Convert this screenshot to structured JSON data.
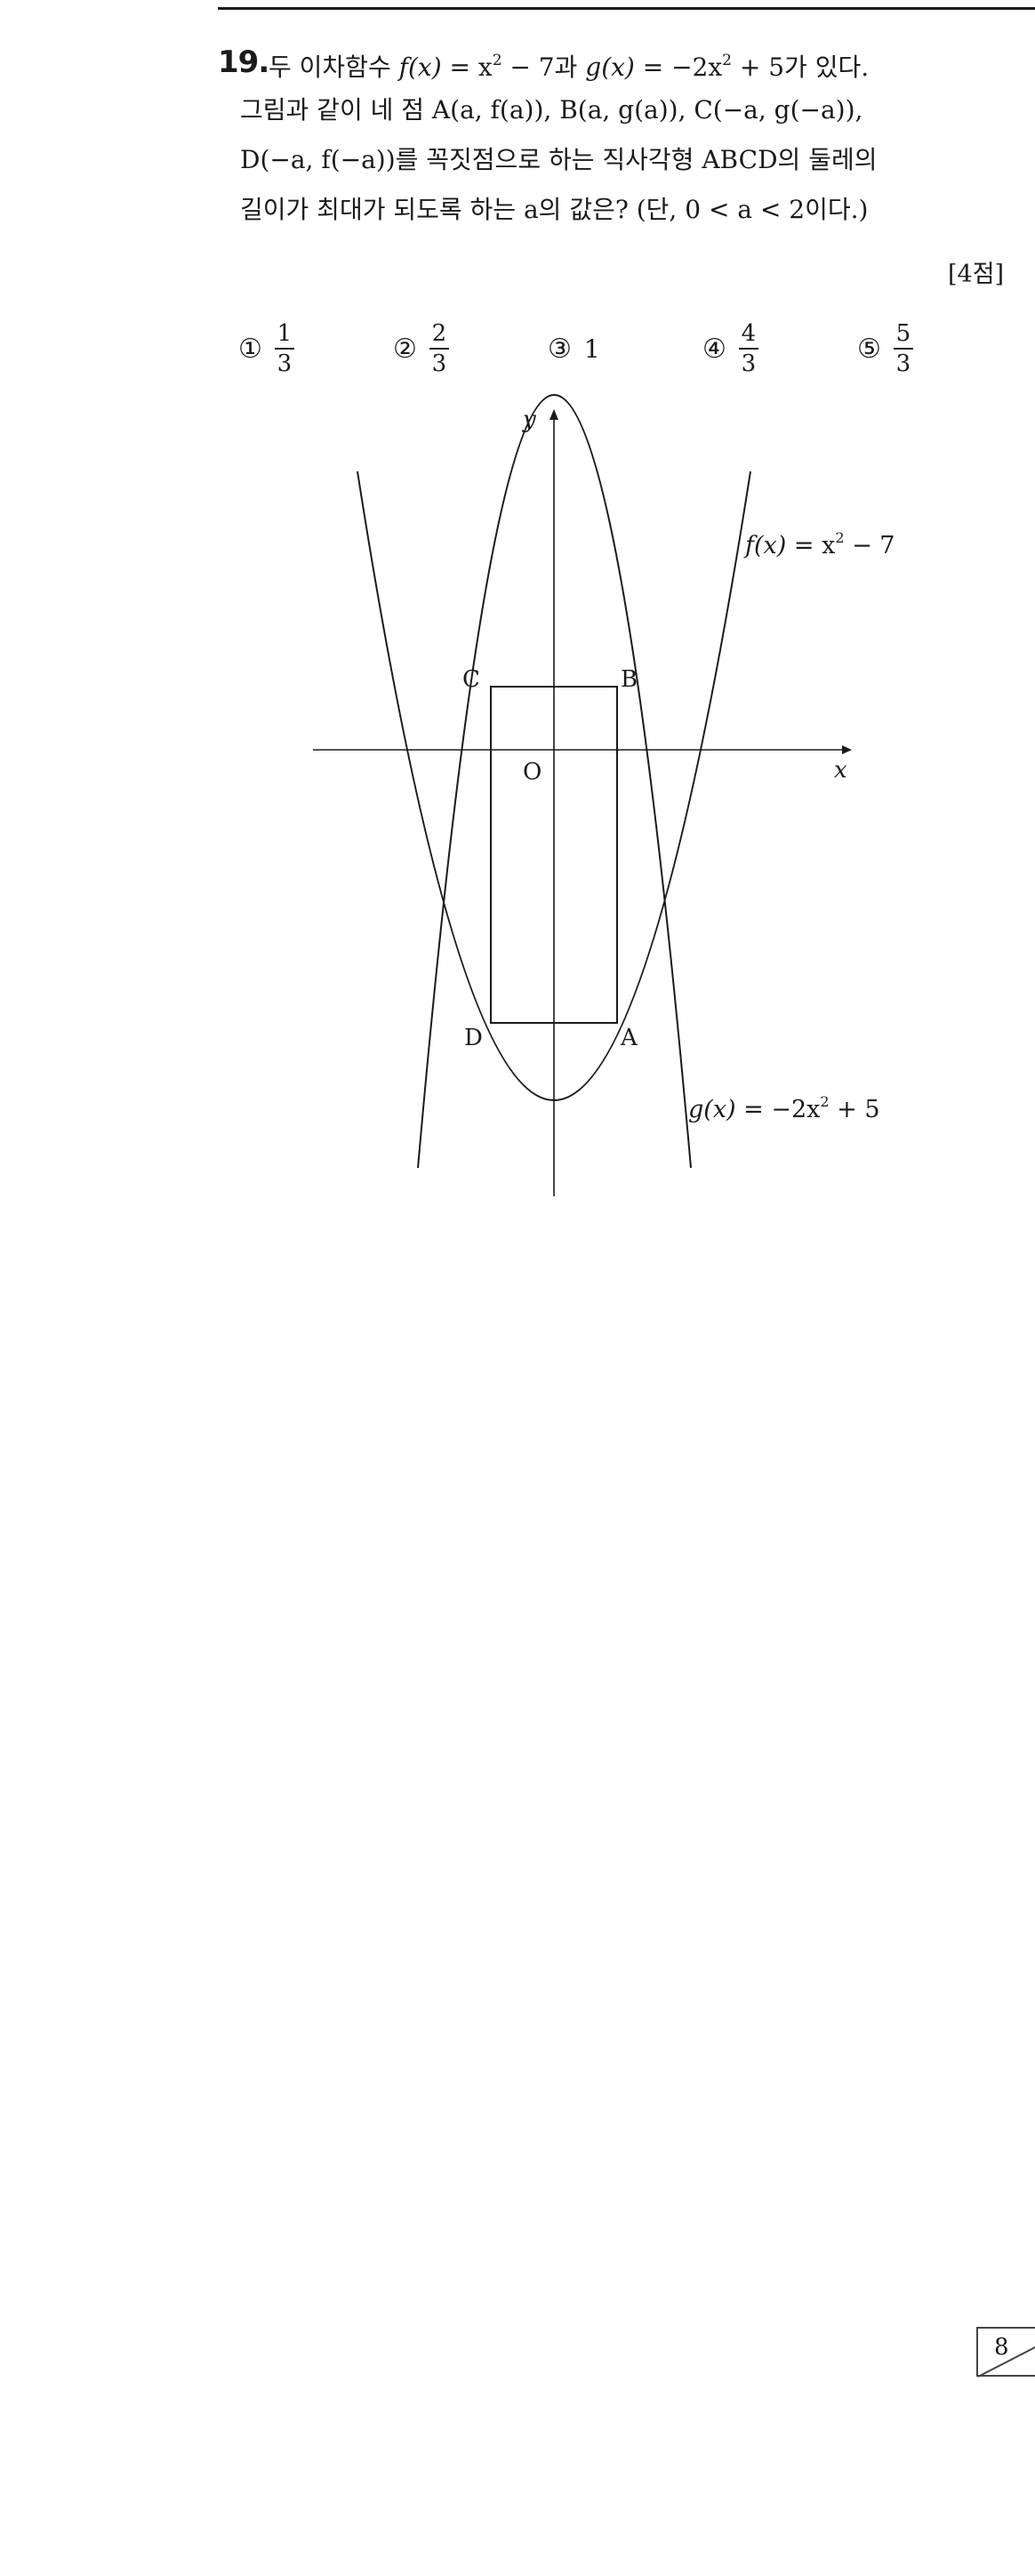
{
  "question": {
    "number": "19.",
    "line1": {
      "t1": "두 이차함수 ",
      "f_lhs": "f(x)",
      "t2": " = x",
      "f_exp": "2",
      "t3": " − 7과  ",
      "g_lhs": "g(x)",
      "t4": " = −2x",
      "g_exp": "2",
      "t5": " + 5가 있다."
    },
    "line2": "그림과 같이 네 점 A(a, f(a)), B(a, g(a)), C(−a, g(−a)),",
    "line3": "D(−a, f(−a))를 꼭짓점으로 하는 직사각형 ABCD의 둘레의",
    "line4": "길이가 최대가 되도록 하는 a의 값은? (단, 0 < a < 2이다.)",
    "points": "[4점]"
  },
  "choices": [
    {
      "marker": "①",
      "numerator": "1",
      "denominator": "3"
    },
    {
      "marker": "②",
      "numerator": "2",
      "denominator": "3"
    },
    {
      "marker": "③",
      "value": "1"
    },
    {
      "marker": "④",
      "numerator": "4",
      "denominator": "3"
    },
    {
      "marker": "⑤",
      "numerator": "5",
      "denominator": "3"
    }
  ],
  "figure": {
    "axis_y": "y",
    "axis_x": "x",
    "origin": "O",
    "labels": {
      "A": "A",
      "B": "B",
      "C": "C",
      "D": "D"
    },
    "f_label": {
      "lhs": "f(x)",
      "rhs": " = x",
      "exp": "2",
      "tail": " − 7"
    },
    "g_label": {
      "lhs": "g(x)",
      "rhs": " = −2x",
      "exp": "2",
      "tail": " + 5"
    }
  },
  "footer": {
    "page_number": "8"
  }
}
